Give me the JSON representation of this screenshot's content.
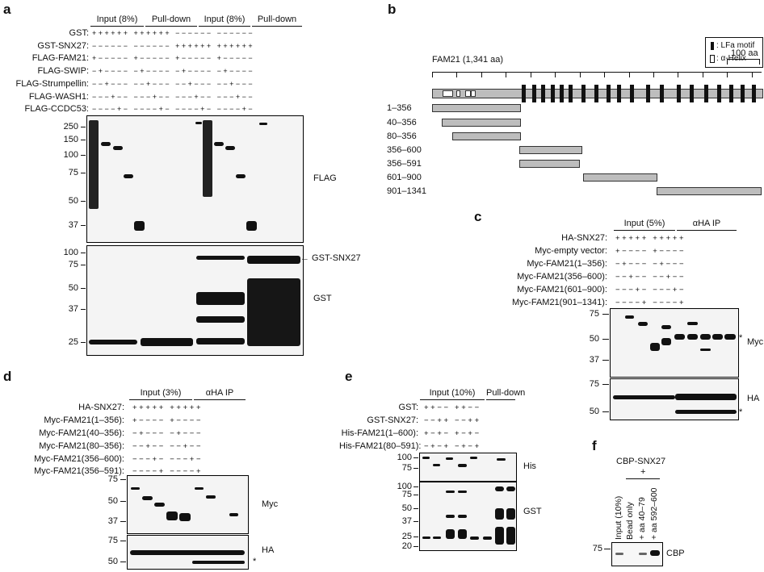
{
  "panels": {
    "a": {
      "letter": "a",
      "groups": [
        "Input (8%)",
        "Pull-down",
        "Input (8%)",
        "Pull-down"
      ],
      "rows": [
        {
          "label": "GST:",
          "signs": "+ + + + + +   + + + + + +   − − − − − −   − − − − − −"
        },
        {
          "label": "GST-SNX27:",
          "signs": "− − − − − −   − − − − − −   + + + + + +   + + + + + +"
        },
        {
          "label": "FLAG-FAM21:",
          "signs": "+ − − − − −   + − − − − −   + − − − − −   + − − − − −"
        },
        {
          "label": "FLAG-SWIP:",
          "signs": "− + − − − −   − + − − − −   − + − − − −   − + − − − −"
        },
        {
          "label": "FLAG-Strumpellin:",
          "signs": "− − + − − −   − − + − − −   − − + − − −   − − + − − −"
        },
        {
          "label": "FLAG-WASH1:",
          "signs": "− − − + − −   − − − + − −   − − − + − −   − − − + − −"
        },
        {
          "label": "FLAG-CCDC53:",
          "signs": "− − − − + −   − − − − + −   − − − − + −   − − − − + −"
        }
      ],
      "blot1_mw": [
        "250",
        "150",
        "100",
        "75",
        "50",
        "37"
      ],
      "blot1_label": "FLAG",
      "blot2_mw": [
        "100",
        "75",
        "50",
        "37",
        "25"
      ],
      "blot2_labels": [
        "← GST-SNX27",
        "GST"
      ]
    },
    "b": {
      "letter": "b",
      "legend": [
        ": LFa motif",
        ": α-Helix"
      ],
      "protein": "FAM21 (1,341 aa)",
      "scale": "100 aa",
      "constructs": [
        "1–356",
        "40–356",
        "80–356",
        "356–600",
        "356–591",
        "601–900",
        "901–1341"
      ]
    },
    "c": {
      "letter": "c",
      "groups": [
        "Input (5%)",
        "αHA IP"
      ],
      "rows": [
        {
          "label": "HA-SNX27:",
          "signs": "+ + + + +   + + + + +"
        },
        {
          "label": "Myc-empty vector:",
          "signs": "+ − − − −   + − − − −"
        },
        {
          "label": "Myc-FAM21(1–356):",
          "signs": "− + − − −   − + − − −"
        },
        {
          "label": "Myc-FAM21(356–600):",
          "signs": "− − + − −   − − + − −"
        },
        {
          "label": "Myc-FAM21(601–900):",
          "signs": "− − − + −   − − − + −"
        },
        {
          "label": "Myc-FAM21(901–1341):",
          "signs": "− − − − +   − − − − +"
        }
      ],
      "blot1_mw": [
        "75",
        "50",
        "37"
      ],
      "blot1_label": "Myc",
      "blot2_mw": [
        "75",
        "50"
      ],
      "blot2_label": "HA",
      "star": "*"
    },
    "d": {
      "letter": "d",
      "groups": [
        "Input (3%)",
        "αHA IP"
      ],
      "rows": [
        {
          "label": "HA-SNX27:",
          "signs": "+ + + + +   + + + + +"
        },
        {
          "label": "Myc-FAM21(1–356):",
          "signs": "+ − − − −   + − − − −"
        },
        {
          "label": "Myc-FAM21(40–356):",
          "signs": "− + − − −   − + − − −"
        },
        {
          "label": "Myc-FAM21(80–356):",
          "signs": "− − + − −   − − + − −"
        },
        {
          "label": "Myc-FAM21(356–600):",
          "signs": "− − − + −   − − − + −"
        },
        {
          "label": "Myc-FAM21(356–591):",
          "signs": "− − − − +   − − − − +"
        }
      ],
      "blot1_mw": [
        "75",
        "50",
        "37"
      ],
      "blot1_label": "Myc",
      "blot2_mw": [
        "75",
        "50"
      ],
      "blot2_label": "HA",
      "star": "*"
    },
    "e": {
      "letter": "e",
      "groups": [
        "Input (10%)",
        "Pull-down"
      ],
      "rows": [
        {
          "label": "GST:",
          "signs": "+ + − −   + + − −"
        },
        {
          "label": "GST-SNX27:",
          "signs": "− − + +   − − + +"
        },
        {
          "label": "His-FAM21(1–600):",
          "signs": "+ − + −   + − + −"
        },
        {
          "label": "His-FAM21(80–591):",
          "signs": "− + − +   − + − +"
        }
      ],
      "blot1_mw": [
        "100",
        "75"
      ],
      "blot1_label": "His",
      "blot2_mw": [
        "100",
        "75",
        "50",
        "37",
        "25",
        "20"
      ],
      "blot2_label": "GST"
    },
    "f": {
      "letter": "f",
      "top": "CBP-SNX27",
      "plus": "+",
      "lanes": [
        "Input (10%)",
        "Bead only",
        "+ aa 40–79",
        "+ aa 592–600"
      ],
      "mw": "75",
      "label": "CBP"
    }
  }
}
